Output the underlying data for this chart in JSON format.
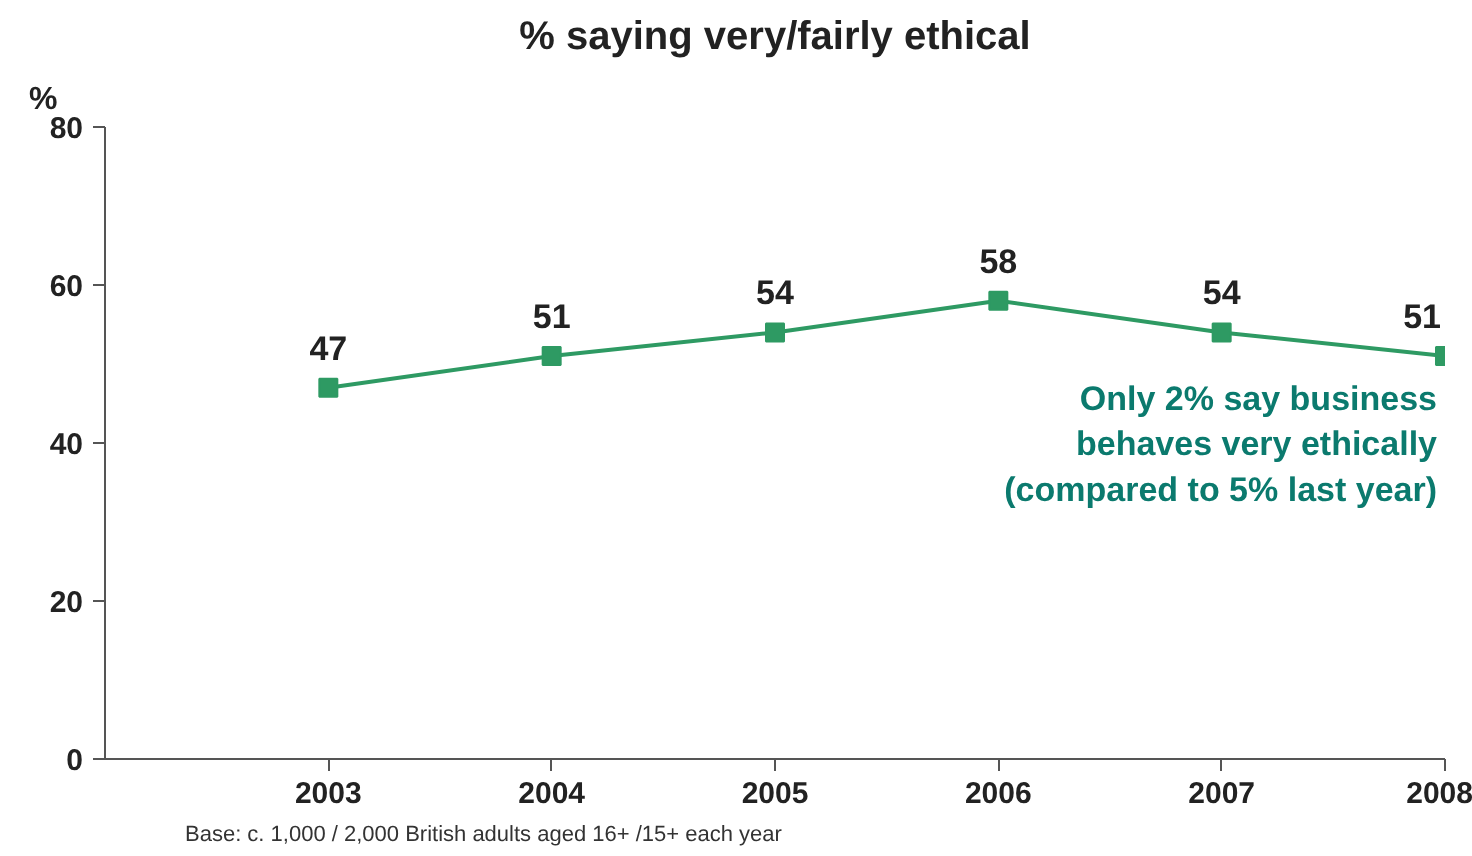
{
  "chart_data": {
    "type": "line",
    "title": "% saying very/fairly ethical",
    "ylabel": "%",
    "x": [
      2003,
      2004,
      2005,
      2006,
      2007,
      2008
    ],
    "series": [
      {
        "color": "#2e9a63",
        "values": [
          47,
          51,
          54,
          58,
          54,
          51
        ]
      }
    ],
    "xlim": [
      2002,
      2008
    ],
    "xticks": [
      2003,
      2004,
      2005,
      2006,
      2007,
      2008
    ],
    "ylim": [
      0,
      80
    ],
    "yticks": [
      0,
      20,
      40,
      60,
      80
    ],
    "grid": false,
    "marker": "square",
    "line_style": "solid",
    "data_labels": true,
    "annotations": [
      "Only 2% say business\nbehaves very ethically\n(compared to 5% last year)",
      "Base: c. 1,000 / 2,000 British adults aged 16+ /15+ each year"
    ]
  }
}
